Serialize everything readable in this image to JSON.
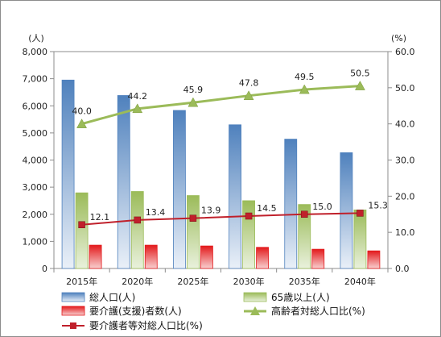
{
  "chart_data": {
    "type": "bar",
    "categories": [
      "2015年",
      "2020年",
      "2025年",
      "2030年",
      "2035年",
      "2040年"
    ],
    "series": [
      {
        "name": "総人口(人)",
        "kind": "bar",
        "axis": "left",
        "color": "#4f81bd",
        "values": [
          6950,
          6380,
          5830,
          5300,
          4770,
          4270
        ]
      },
      {
        "name": "65歳以上(人)",
        "kind": "bar",
        "axis": "left",
        "color": "#9bbb59",
        "values": [
          2790,
          2840,
          2690,
          2500,
          2360,
          2160
        ]
      },
      {
        "name": "要介護(支援)者数(人)",
        "kind": "bar",
        "axis": "left",
        "color": "#e31a1c",
        "values": [
          860,
          860,
          830,
          780,
          710,
          650
        ]
      },
      {
        "name": "高齢者対総人口比(%)",
        "kind": "line",
        "axis": "right",
        "color": "#9bbb59",
        "marker": "triangle",
        "values": [
          40.0,
          44.2,
          45.9,
          47.8,
          49.5,
          50.5
        ],
        "labels": [
          "40.0",
          "44.2",
          "45.9",
          "47.8",
          "49.5",
          "50.5"
        ]
      },
      {
        "name": "要介護者等対総人口比(%)",
        "kind": "line",
        "axis": "right",
        "color": "#c0202b",
        "marker": "square",
        "values": [
          12.1,
          13.4,
          13.9,
          14.5,
          15.0,
          15.3
        ],
        "labels": [
          "12.1",
          "13.4",
          "13.9",
          "14.5",
          "15.0",
          "15.3"
        ]
      }
    ],
    "y_left": {
      "label": "(人)",
      "lim": [
        0,
        8000
      ],
      "ticks": [
        "0",
        "1,000",
        "2,000",
        "3,000",
        "4,000",
        "5,000",
        "6,000",
        "7,000",
        "8,000"
      ]
    },
    "y_right": {
      "label": "(%)",
      "lim": [
        0,
        60
      ],
      "ticks": [
        "0.0",
        "10.0",
        "20.0",
        "30.0",
        "40.0",
        "50.0",
        "60.0"
      ]
    },
    "grid": false,
    "legend_position": "bottom"
  }
}
